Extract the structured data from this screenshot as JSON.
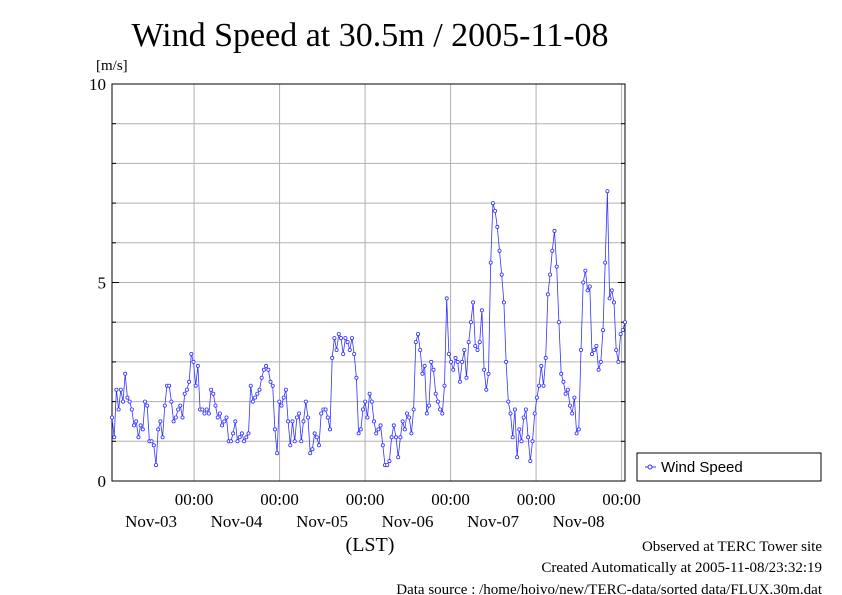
{
  "page": {
    "footer": {
      "observed": "Observed at TERC Tower site",
      "created": "Created Automatically at 2005-11-08/23:32:19",
      "source": "Data source : /home/hoivo/new/TERC-data/sorted  data/FLUX.30m.dat"
    }
  },
  "chart_data": {
    "type": "line",
    "title": "Wind Speed at 30.5m / 2005-11-08",
    "ylabel": "[m/s]",
    "xlabel": "(LST)",
    "ylim": [
      0,
      10
    ],
    "yticks": [
      "0",
      "5",
      "10"
    ],
    "xlim": [
      0,
      6
    ],
    "xticks": [
      {
        "time": "00:00",
        "date": "Nov-03"
      },
      {
        "time": "00:00",
        "date": "Nov-04"
      },
      {
        "time": "00:00",
        "date": "Nov-05"
      },
      {
        "time": "00:00",
        "date": "Nov-06"
      },
      {
        "time": "00:00",
        "date": "Nov-07"
      },
      {
        "time": "00:00",
        "date": "Nov-08"
      }
    ],
    "grid": true,
    "legend_position": "right",
    "series": [
      {
        "name": "Wind Speed",
        "color": "#3333ff",
        "values": [
          1.6,
          1.1,
          2.3,
          1.8,
          2.3,
          2.0,
          2.7,
          2.1,
          2.0,
          1.8,
          1.4,
          1.5,
          1.1,
          1.4,
          1.3,
          2.0,
          1.9,
          1.0,
          1.0,
          0.9,
          0.4,
          1.3,
          1.5,
          1.1,
          1.9,
          2.4,
          2.4,
          2.0,
          1.5,
          1.6,
          1.8,
          1.9,
          1.6,
          2.2,
          2.3,
          2.5,
          3.2,
          3.0,
          2.4,
          2.9,
          1.8,
          1.8,
          1.7,
          1.8,
          1.7,
          2.3,
          2.2,
          1.9,
          1.6,
          1.7,
          1.4,
          1.5,
          1.6,
          1.0,
          1.0,
          1.2,
          1.5,
          1.0,
          1.1,
          1.2,
          1.0,
          1.1,
          1.2,
          2.4,
          2.0,
          2.1,
          2.2,
          2.3,
          2.6,
          2.8,
          2.9,
          2.8,
          2.5,
          2.4,
          1.3,
          0.7,
          2.0,
          1.9,
          2.1,
          2.3,
          1.5,
          0.9,
          1.5,
          1.0,
          1.6,
          1.7,
          1.0,
          1.5,
          2.0,
          1.6,
          0.7,
          0.8,
          1.2,
          1.1,
          0.9,
          1.7,
          1.8,
          1.8,
          1.6,
          1.3,
          3.1,
          3.6,
          3.3,
          3.7,
          3.6,
          3.2,
          3.6,
          3.5,
          3.3,
          3.6,
          3.2,
          2.6,
          1.2,
          1.3,
          1.8,
          2.0,
          1.6,
          2.2,
          2.0,
          1.5,
          1.2,
          1.3,
          1.4,
          0.9,
          0.4,
          0.4,
          0.5,
          1.1,
          1.4,
          1.1,
          0.6,
          1.1,
          1.5,
          1.3,
          1.7,
          1.6,
          1.2,
          1.8,
          3.5,
          3.7,
          3.3,
          2.7,
          2.9,
          1.7,
          1.9,
          3.0,
          2.8,
          2.2,
          2.0,
          1.8,
          1.7,
          2.4,
          4.6,
          3.2,
          3.0,
          2.8,
          3.1,
          3.0,
          2.5,
          3.0,
          3.3,
          2.6,
          3.5,
          4.0,
          4.5,
          3.4,
          3.3,
          3.5,
          4.3,
          2.8,
          2.3,
          2.7,
          5.5,
          7.0,
          6.8,
          6.4,
          5.8,
          5.2,
          4.5,
          3.0,
          2.0,
          1.7,
          1.1,
          1.8,
          0.6,
          1.3,
          1.0,
          1.6,
          1.8,
          1.1,
          0.5,
          1.0,
          1.7,
          2.1,
          2.4,
          2.9,
          2.4,
          3.1,
          4.7,
          5.2,
          5.8,
          6.3,
          5.4,
          4.0,
          2.7,
          2.5,
          2.2,
          2.3,
          1.9,
          1.7,
          2.1,
          1.2,
          1.3,
          3.3,
          5.0,
          5.3,
          4.8,
          4.9,
          3.2,
          3.3,
          3.4,
          2.8,
          3.0,
          3.8,
          5.5,
          7.3,
          4.6,
          4.8,
          4.5,
          3.3,
          3.0,
          3.7,
          3.8,
          4.0
        ]
      }
    ]
  }
}
